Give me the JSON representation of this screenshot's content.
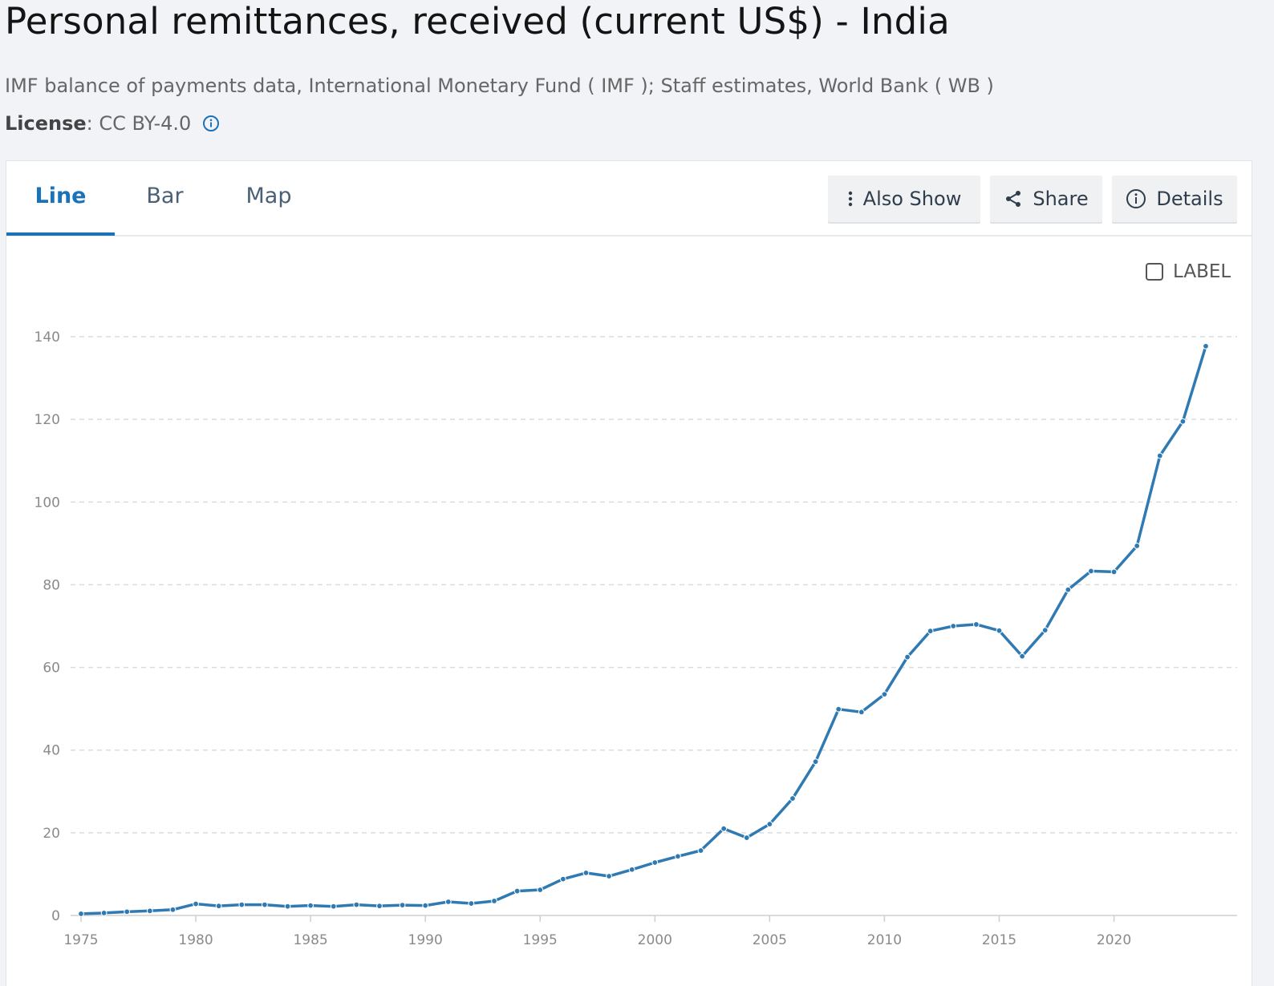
{
  "header": {
    "title": "Personal remittances, received (current US$) - India",
    "source": "IMF balance of payments data, International Monetary Fund ( IMF ); Staff estimates, World Bank ( WB )",
    "license_label": "License",
    "license_value": " : CC BY-4.0"
  },
  "tabs": [
    {
      "label": "Line",
      "active": true
    },
    {
      "label": "Bar",
      "active": false
    },
    {
      "label": "Map",
      "active": false
    }
  ],
  "actions": {
    "also_show": "Also Show",
    "share": "Share",
    "details": "Details"
  },
  "label_toggle": "LABEL",
  "colors": {
    "line": "#2f7ab2",
    "accent": "#1a72b8",
    "grid": "#dcdcdc"
  },
  "chart_data": {
    "type": "line",
    "title": "",
    "xlabel": "",
    "ylabel": "",
    "x_ticks": [
      1975,
      1980,
      1985,
      1990,
      1995,
      2000,
      2005,
      2010,
      2015,
      2020
    ],
    "y_ticks": [
      0,
      20,
      40,
      60,
      80,
      100,
      120,
      140
    ],
    "xlim": [
      1975,
      2024
    ],
    "ylim": [
      0,
      140
    ],
    "grid": true,
    "legend": "none",
    "series": [
      {
        "x": [
          1975,
          1976,
          1977,
          1978,
          1979,
          1980,
          1981,
          1982,
          1983,
          1984,
          1985,
          1986,
          1987,
          1988,
          1989,
          1990,
          1991,
          1992,
          1993,
          1994,
          1995,
          1996,
          1997,
          1998,
          1999,
          2000,
          2001,
          2002,
          2003,
          2004,
          2005,
          2006,
          2007,
          2008,
          2009,
          2010,
          2011,
          2012,
          2013,
          2014,
          2015,
          2016,
          2017,
          2018,
          2019,
          2020,
          2021,
          2022,
          2023,
          2024
        ],
        "y": [
          0.4,
          0.6,
          0.9,
          1.1,
          1.4,
          2.8,
          2.3,
          2.6,
          2.6,
          2.2,
          2.4,
          2.2,
          2.6,
          2.3,
          2.5,
          2.4,
          3.3,
          2.9,
          3.5,
          5.9,
          6.2,
          8.8,
          10.3,
          9.5,
          11.1,
          12.8,
          14.3,
          15.7,
          21.0,
          18.8,
          22.1,
          28.3,
          37.2,
          49.9,
          49.2,
          53.5,
          62.5,
          68.8,
          70.0,
          70.4,
          68.9,
          62.7,
          69.0,
          78.8,
          83.3,
          83.1,
          89.4,
          111.2,
          119.5,
          137.7
        ]
      }
    ]
  }
}
